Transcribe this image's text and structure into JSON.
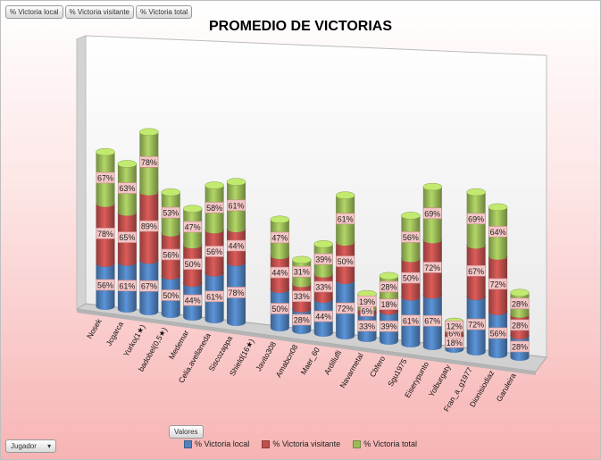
{
  "header": {
    "field_buttons": [
      "% Victoria local",
      "% Victoria visitante",
      "% Victoria total"
    ]
  },
  "footer": {
    "values_button": "Valores",
    "axis_field_button": "Jugador",
    "dropdown_icon": "dropdown-arrow-icon"
  },
  "colors": {
    "local": "#4f81bd",
    "visitante": "#c0504d",
    "total": "#9bbb59",
    "label_bg": "#f4c7c7",
    "label_border": "#c98a8a"
  },
  "chart_data": {
    "type": "bar",
    "subtype": "3d-stacked-column",
    "title": "PROMEDIO DE VICTORIAS",
    "xlabel": "",
    "ylabel": "",
    "legend_position": "bottom",
    "categories": [
      "Nosek",
      "Jcgarca",
      "Yurko(1★)",
      "badobel(0,5★)",
      "Medemar",
      "Celia.avellaneda",
      "Siscozappa",
      "Shield(16★)",
      "Javito308",
      "Amabcn08",
      "Maer_60",
      "Ardillufli",
      "Navarmetal",
      "Cbfero",
      "Sgu1975",
      "Eiserypunto",
      "Yolburgaty",
      "Fran_a_g1977",
      "Dionisiodiaz",
      "Garuleira"
    ],
    "series": [
      {
        "name": "% Victoria local",
        "values": [
          "56%",
          "61%",
          "67%",
          "50%",
          "44%",
          "61%",
          "78%",
          "",
          "50%",
          "28%",
          "44%",
          "72%",
          "33%",
          "39%",
          "61%",
          "67%",
          "18%",
          "72%",
          "56%",
          "28%"
        ]
      },
      {
        "name": "% Victoria visitante",
        "values": [
          "78%",
          "65%",
          "89%",
          "56%",
          "50%",
          "56%",
          "44%",
          "",
          "44%",
          "33%",
          "33%",
          "50%",
          "6%",
          "18%",
          "50%",
          "72%",
          "6%",
          "67%",
          "72%",
          "28%"
        ]
      },
      {
        "name": "% Victoria total",
        "values": [
          "67%",
          "63%",
          "78%",
          "53%",
          "47%",
          "58%",
          "61%",
          "",
          "47%",
          "31%",
          "39%",
          "61%",
          "19%",
          "28%",
          "56%",
          "69%",
          "12%",
          "69%",
          "64%",
          "28%"
        ]
      }
    ]
  }
}
